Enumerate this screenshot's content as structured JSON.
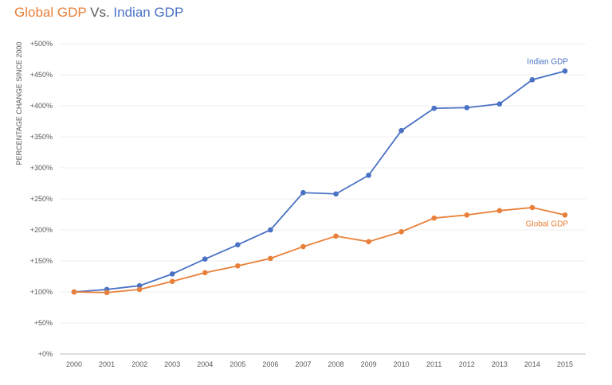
{
  "chart_data": {
    "type": "line",
    "title": {
      "part1": "Global GDP",
      "part2": " Vs. ",
      "part3": "Indian GDP"
    },
    "ylabel": "PERCENTAGE CHANGE SINCE 2000",
    "xlabel": "",
    "x": [
      "2000",
      "2001",
      "2002",
      "2003",
      "2004",
      "2005",
      "2006",
      "2007",
      "2008",
      "2009",
      "2010",
      "2011",
      "2012",
      "2013",
      "2014",
      "2015"
    ],
    "ylim": [
      0,
      500
    ],
    "yticks": [
      0,
      50,
      100,
      150,
      200,
      250,
      300,
      350,
      400,
      450,
      500
    ],
    "ytick_labels": [
      "+0%",
      "+50%",
      "+100%",
      "+150%",
      "+200%",
      "+250%",
      "+300%",
      "+350%",
      "+400%",
      "+450%",
      "+500%"
    ],
    "grid": true,
    "legend": "inline labels at line ends",
    "series": [
      {
        "name": "Indian GDP",
        "color": "#4a72c4",
        "values": [
          100,
          104,
          110,
          129,
          153,
          176,
          200,
          260,
          258,
          288,
          360,
          396,
          397,
          403,
          442,
          456
        ]
      },
      {
        "name": "Global GDP",
        "color": "#e8803a",
        "values": [
          100,
          99,
          104,
          117,
          131,
          142,
          154,
          173,
          190,
          181,
          197,
          219,
          224,
          231,
          236,
          224
        ]
      }
    ]
  }
}
